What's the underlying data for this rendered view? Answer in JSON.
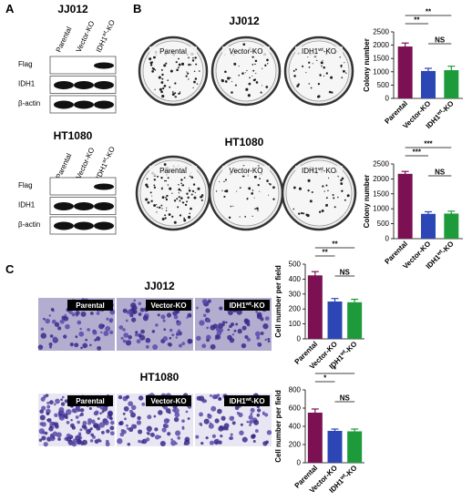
{
  "panels": {
    "a": "A",
    "b": "B",
    "c": "C"
  },
  "blots": [
    {
      "title": "JJ012",
      "lanes": [
        {
          "text": "Parental"
        },
        {
          "text": "Vector-KO"
        },
        {
          "text": "IDH1",
          "sup": "wt",
          "post": "-KO"
        }
      ],
      "rows": [
        "Flag",
        "IDH1",
        "β-actin"
      ]
    },
    {
      "title": "HT1080",
      "lanes": [
        {
          "text": "Parental"
        },
        {
          "text": "Vector-KO"
        },
        {
          "text": "IDH1",
          "sup": "wt",
          "post": "-KO"
        }
      ],
      "rows": [
        "Flag",
        "IDH1",
        "β-actin"
      ]
    }
  ],
  "plates": [
    {
      "title": "JJ012",
      "labels": [
        {
          "text": "Parental"
        },
        {
          "text": "Vector-KO"
        },
        {
          "text": "IDH1",
          "sup": "wt",
          "post": "-KO"
        }
      ]
    },
    {
      "title": "HT1080",
      "labels": [
        {
          "text": "Parental"
        },
        {
          "text": "Vector-KO"
        },
        {
          "text": "IDH1",
          "sup": "wt",
          "post": "-KO"
        }
      ]
    }
  ],
  "stains": [
    {
      "title": "JJ012",
      "labels": [
        {
          "text": "Parental"
        },
        {
          "text": "Vector-KO"
        },
        {
          "text": "IDH1",
          "sup": "wt",
          "post": "-KO"
        }
      ]
    },
    {
      "title": "HT1080",
      "labels": [
        {
          "text": "Parental"
        },
        {
          "text": "Vector-KO"
        },
        {
          "text": "IDH1",
          "sup": "wt",
          "post": "-KO"
        }
      ]
    }
  ],
  "chart_data": [
    {
      "type": "bar",
      "ylabel": "Colony number",
      "categories": [
        {
          "text": "Parental"
        },
        {
          "text": "Vector-KO"
        },
        {
          "text": "IDH1",
          "sup": "wt",
          "post": "-KO"
        }
      ],
      "values": [
        1950,
        1030,
        1060
      ],
      "errors": [
        130,
        100,
        150
      ],
      "colors": [
        "#7b1152",
        "#2d46b5",
        "#1d9a3a"
      ],
      "ylim": [
        0,
        2500
      ],
      "yticks": [
        0,
        500,
        1000,
        1500,
        2000,
        2500
      ],
      "annotations": [
        {
          "text": "**",
          "from": 0,
          "to": 1
        },
        {
          "text": "**",
          "from": 0,
          "to": 2
        },
        {
          "text": "NS",
          "from": 1,
          "to": 2
        }
      ]
    },
    {
      "type": "bar",
      "ylabel": "Colony number",
      "categories": [
        {
          "text": "Parental"
        },
        {
          "text": "Vector-KO"
        },
        {
          "text": "IDH1",
          "sup": "wt",
          "post": "-KO"
        }
      ],
      "values": [
        2170,
        830,
        840
      ],
      "errors": [
        80,
        70,
        80
      ],
      "colors": [
        "#7b1152",
        "#2d46b5",
        "#1d9a3a"
      ],
      "ylim": [
        0,
        2500
      ],
      "yticks": [
        0,
        500,
        1000,
        1500,
        2000,
        2500
      ],
      "annotations": [
        {
          "text": "***",
          "from": 0,
          "to": 1
        },
        {
          "text": "***",
          "from": 0,
          "to": 2
        },
        {
          "text": "NS",
          "from": 1,
          "to": 2
        }
      ]
    },
    {
      "type": "bar",
      "ylabel": "Cell number per field",
      "categories": [
        {
          "text": "Parental"
        },
        {
          "text": "Vector-KO"
        },
        {
          "text": "IDH1",
          "sup": "wt",
          "post": "-KO"
        }
      ],
      "values": [
        425,
        250,
        245
      ],
      "errors": [
        25,
        20,
        20
      ],
      "colors": [
        "#7b1152",
        "#2d46b5",
        "#1d9a3a"
      ],
      "ylim": [
        0,
        500
      ],
      "yticks": [
        0,
        100,
        200,
        300,
        400,
        500
      ],
      "annotations": [
        {
          "text": "**",
          "from": 0,
          "to": 1
        },
        {
          "text": "**",
          "from": 0,
          "to": 2
        },
        {
          "text": "NS",
          "from": 1,
          "to": 2
        }
      ]
    },
    {
      "type": "bar",
      "ylabel": "Cell number per field",
      "categories": [
        {
          "text": "Parental"
        },
        {
          "text": "Vector-KO"
        },
        {
          "text": "IDH1",
          "sup": "wt",
          "post": "-KO"
        }
      ],
      "values": [
        550,
        350,
        345
      ],
      "errors": [
        40,
        20,
        25
      ],
      "colors": [
        "#7b1152",
        "#2d46b5",
        "#1d9a3a"
      ],
      "ylim": [
        0,
        800
      ],
      "yticks": [
        0,
        200,
        400,
        600,
        800
      ],
      "annotations": [
        {
          "text": "*",
          "from": 0,
          "to": 1
        },
        {
          "text": "*",
          "from": 0,
          "to": 2
        },
        {
          "text": "NS",
          "from": 1,
          "to": 2
        }
      ]
    }
  ]
}
